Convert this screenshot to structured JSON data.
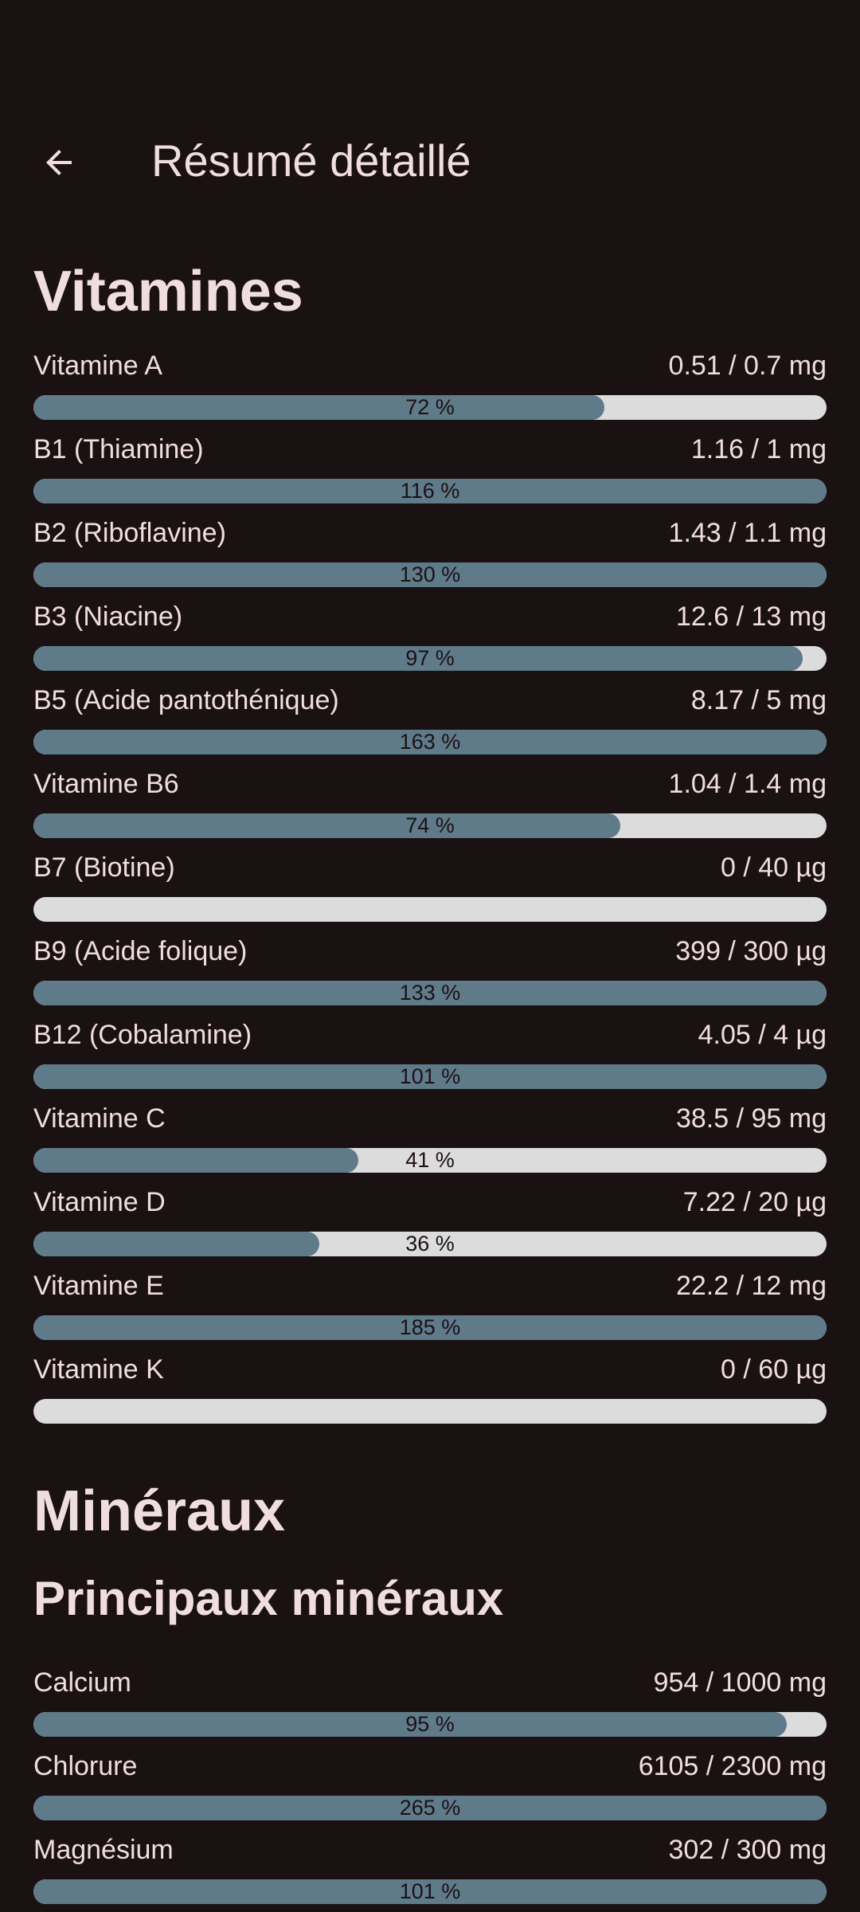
{
  "header": {
    "title": "Résumé détaillé",
    "back_icon": "arrow-left-icon"
  },
  "colors": {
    "background": "#1a1113",
    "text": "#f0dde0",
    "bar_fill": "#5f7a89",
    "bar_track": "#dcdcdc"
  },
  "vitamins": {
    "title": "Vitamines",
    "items": [
      {
        "name": "Vitamine A",
        "value": "0.51 / 0.7 mg",
        "percent_label": "72 %",
        "fill": 0.72
      },
      {
        "name": "B1 (Thiamine)",
        "value": "1.16 / 1 mg",
        "percent_label": "116 %",
        "fill": 1.0
      },
      {
        "name": "B2 (Riboflavine)",
        "value": "1.43 / 1.1 mg",
        "percent_label": "130 %",
        "fill": 1.0
      },
      {
        "name": "B3 (Niacine)",
        "value": "12.6 / 13 mg",
        "percent_label": "97 %",
        "fill": 0.97
      },
      {
        "name": "B5 (Acide pantothénique)",
        "value": "8.17 / 5 mg",
        "percent_label": "163 %",
        "fill": 1.0
      },
      {
        "name": "Vitamine B6",
        "value": "1.04 / 1.4 mg",
        "percent_label": "74 %",
        "fill": 0.74
      },
      {
        "name": "B7 (Biotine)",
        "value": "0 / 40 µg",
        "percent_label": "",
        "fill": 0
      },
      {
        "name": "B9 (Acide folique)",
        "value": "399 / 300 µg",
        "percent_label": "133 %",
        "fill": 1.0
      },
      {
        "name": "B12 (Cobalamine)",
        "value": "4.05 / 4 µg",
        "percent_label": "101 %",
        "fill": 1.0
      },
      {
        "name": "Vitamine C",
        "value": "38.5 / 95 mg",
        "percent_label": "41 %",
        "fill": 0.41
      },
      {
        "name": "Vitamine D",
        "value": "7.22 / 20 µg",
        "percent_label": "36 %",
        "fill": 0.36
      },
      {
        "name": "Vitamine E",
        "value": "22.2 / 12 mg",
        "percent_label": "185 %",
        "fill": 1.0
      },
      {
        "name": "Vitamine K",
        "value": "0 / 60 µg",
        "percent_label": "",
        "fill": 0
      }
    ]
  },
  "minerals": {
    "title": "Minéraux",
    "subtitle": "Principaux minéraux",
    "items": [
      {
        "name": "Calcium",
        "value": "954 / 1000 mg",
        "percent_label": "95 %",
        "fill": 0.95
      },
      {
        "name": "Chlorure",
        "value": "6105 / 2300 mg",
        "percent_label": "265 %",
        "fill": 1.0
      },
      {
        "name": "Magnésium",
        "value": "302 / 300 mg",
        "percent_label": "101 %",
        "fill": 1.0
      }
    ]
  }
}
